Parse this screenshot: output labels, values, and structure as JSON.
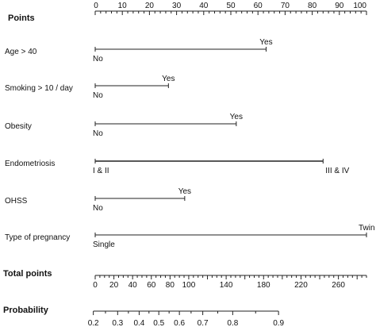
{
  "chart_data": {
    "type": "nomogram",
    "title": "",
    "points": {
      "label": "Points",
      "range": [
        0,
        100
      ],
      "tick_labels": [
        "0",
        "10",
        "20",
        "30",
        "40",
        "50",
        "60",
        "70",
        "80",
        "90",
        "100"
      ]
    },
    "predictors": [
      {
        "name": "Age > 40",
        "levels": [
          {
            "label": "No",
            "points": 0
          },
          {
            "label": "Yes",
            "points": 63
          }
        ]
      },
      {
        "name": "Smoking > 10 / day",
        "levels": [
          {
            "label": "No",
            "points": 0
          },
          {
            "label": "Yes",
            "points": 27
          }
        ]
      },
      {
        "name": "Obesity",
        "levels": [
          {
            "label": "No",
            "points": 0
          },
          {
            "label": "Yes",
            "points": 52
          }
        ]
      },
      {
        "name": "Endometriosis",
        "levels": [
          {
            "label": "I & II",
            "points": 0
          },
          {
            "label": "III & IV",
            "points": 84
          }
        ]
      },
      {
        "name": "OHSS",
        "levels": [
          {
            "label": "No",
            "points": 0
          },
          {
            "label": "Yes",
            "points": 33
          }
        ]
      },
      {
        "name": "Type of pregnancy",
        "levels": [
          {
            "label": "Single",
            "points": 0
          },
          {
            "label": "Twin",
            "points": 100
          }
        ]
      }
    ],
    "total_points": {
      "label": "Total points",
      "range": [
        0,
        290
      ],
      "tick_labels": [
        "0",
        "20",
        "40",
        "60",
        "80",
        "100",
        "140",
        "180",
        "220",
        "260"
      ],
      "tick_values": [
        0,
        20,
        40,
        60,
        80,
        100,
        140,
        180,
        220,
        260
      ]
    },
    "probability": {
      "label": "Probability",
      "tick_labels": [
        "0.2",
        "0.3",
        "0.4",
        "0.5",
        "0.6",
        "0.7",
        "0.8",
        "0.9"
      ],
      "tick_values": [
        0.2,
        0.3,
        0.4,
        0.5,
        0.6,
        0.7,
        0.8,
        0.9
      ],
      "total_points_at_tick": [
        -2,
        24,
        47,
        68,
        90,
        115,
        147,
        196
      ]
    }
  }
}
